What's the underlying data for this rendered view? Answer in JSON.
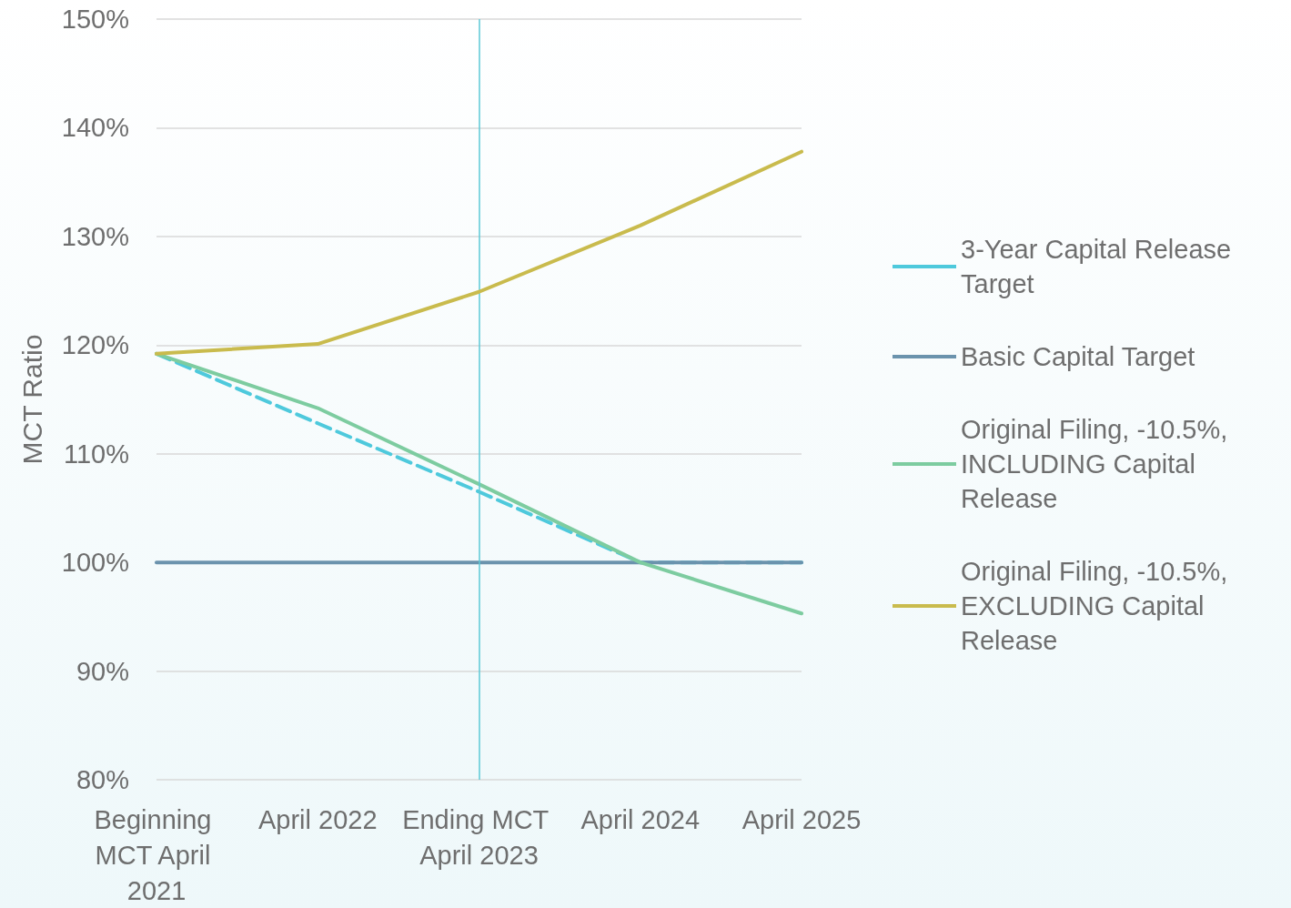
{
  "chart_data": {
    "type": "line",
    "ylabel": "MCT Ratio",
    "categories": [
      "Beginning MCT April 2021",
      "April 2022",
      "Ending MCT April 2023",
      "April 2024",
      "April 2025"
    ],
    "series": [
      {
        "name": "3-Year Capital Release Target",
        "color": "#4ec9dc",
        "line_style": "dashed",
        "values": [
          119.2,
          112.8,
          106.5,
          100,
          100
        ]
      },
      {
        "name": "Basic Capital Target",
        "color": "#6b93ad",
        "values": [
          100,
          100,
          100,
          100,
          100
        ]
      },
      {
        "name": "Original Filing, -10.5%, INCLUDING Capital Release",
        "color": "#7dcca0",
        "values": [
          119.2,
          114.2,
          107.2,
          100,
          95.3
        ]
      },
      {
        "name": "Original Filing, -10.5%, EXCLUDING Capital Release",
        "color": "#c9bb4d",
        "values": [
          119.2,
          120.1,
          124.9,
          131,
          137.8
        ]
      }
    ],
    "ylim": [
      80,
      150
    ],
    "yticks": [
      {
        "value": 80,
        "label": "80%"
      },
      {
        "value": 90,
        "label": "90%"
      },
      {
        "value": 100,
        "label": "100%"
      },
      {
        "value": 110,
        "label": "110%"
      },
      {
        "value": 120,
        "label": "120%"
      },
      {
        "value": 130,
        "label": "130%"
      },
      {
        "value": 140,
        "label": "140%"
      },
      {
        "value": 150,
        "label": "150%"
      }
    ],
    "ref_lines": [
      {
        "axis": "x",
        "value": "Ending MCT April 2023",
        "color": "#5bc8d6"
      }
    ],
    "grid": "y",
    "legend": "right",
    "marker": "none",
    "line_style": "solid"
  }
}
